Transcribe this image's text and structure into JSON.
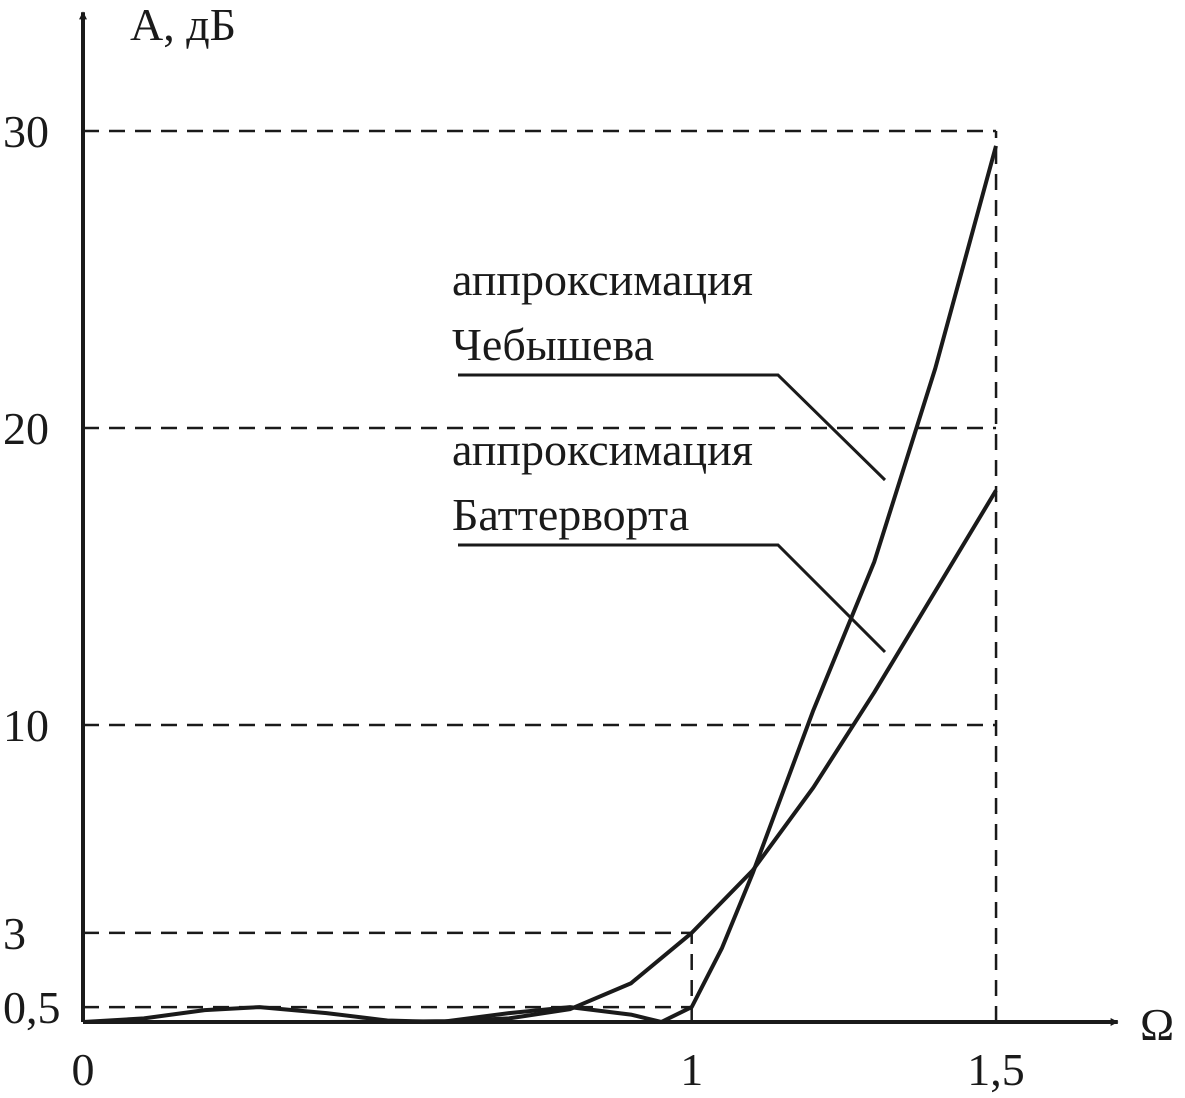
{
  "chart_data": {
    "type": "line",
    "x_label": "Ω",
    "y_label": "A, дБ",
    "xlim": [
      0,
      1.7
    ],
    "ylim": [
      0,
      34
    ],
    "xticks": [
      0,
      1,
      {
        "value": 1.5,
        "label": "1,5"
      }
    ],
    "yticks": [
      {
        "value": 0.5,
        "label": "0,5"
      },
      3,
      10,
      20,
      30
    ],
    "series": [
      {
        "name": "аппроксимация Чебышева",
        "color": "#1a1a1a",
        "x": [
          0,
          0.1,
          0.2,
          0.29,
          0.4,
          0.5,
          0.588,
          0.7,
          0.8,
          0.9,
          0.95,
          1.0,
          1.05,
          1.1,
          1.2,
          1.3,
          1.4,
          1.5
        ],
        "values": [
          0,
          0.12,
          0.4,
          0.5,
          0.3,
          0.05,
          0,
          0.3,
          0.5,
          0.25,
          0,
          0.5,
          2.5,
          5,
          10.5,
          15.5,
          22,
          29.5
        ]
      },
      {
        "name": "аппроксимация Баттерворта",
        "color": "#1a1a1a",
        "x": [
          0,
          0.2,
          0.4,
          0.5,
          0.6,
          0.7,
          0.8,
          0.9,
          1.0,
          1.1,
          1.2,
          1.3,
          1.4,
          1.5
        ],
        "values": [
          0,
          0,
          0,
          0.01,
          0.03,
          0.12,
          0.43,
          1.3,
          3,
          5.1,
          7.9,
          11.1,
          14.5,
          17.9
        ]
      }
    ],
    "annotations": [
      {
        "lines": [
          "аппроксимация",
          "Чебышева"
        ]
      },
      {
        "lines": [
          "аппроксимация",
          "Баттерворта"
        ]
      }
    ]
  }
}
